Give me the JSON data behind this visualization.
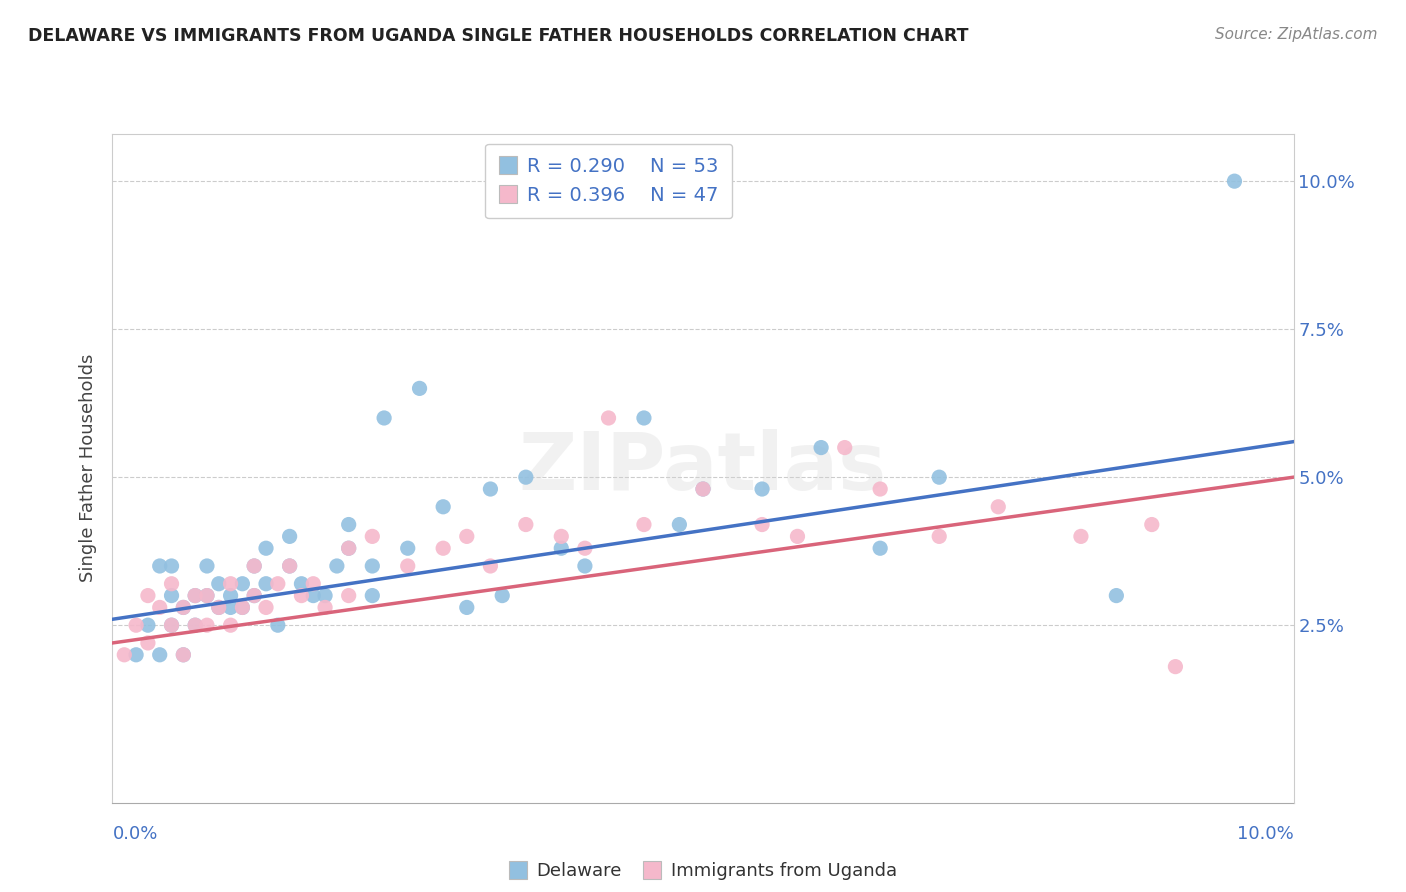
{
  "title": "DELAWARE VS IMMIGRANTS FROM UGANDA SINGLE FATHER HOUSEHOLDS CORRELATION CHART",
  "source": "Source: ZipAtlas.com",
  "ylabel": "Single Father Households",
  "ylabel_right_ticks": [
    "2.5%",
    "5.0%",
    "7.5%",
    "10.0%"
  ],
  "ylabel_right_values": [
    0.025,
    0.05,
    0.075,
    0.1
  ],
  "xlim": [
    0.0,
    0.1
  ],
  "ylim": [
    -0.005,
    0.108
  ],
  "legend1_R": "0.290",
  "legend1_N": "53",
  "legend2_R": "0.396",
  "legend2_N": "47",
  "blue_color": "#92C0E0",
  "pink_color": "#F5B8CB",
  "blue_line_color": "#4472C4",
  "pink_line_color": "#D9647A",
  "text_color": "#4472C4",
  "watermark": "ZIPatlas",
  "blue_points_x": [
    0.002,
    0.003,
    0.004,
    0.004,
    0.005,
    0.005,
    0.005,
    0.006,
    0.006,
    0.007,
    0.007,
    0.008,
    0.008,
    0.009,
    0.009,
    0.01,
    0.01,
    0.011,
    0.011,
    0.012,
    0.012,
    0.013,
    0.013,
    0.014,
    0.015,
    0.015,
    0.016,
    0.017,
    0.018,
    0.019,
    0.02,
    0.02,
    0.022,
    0.022,
    0.023,
    0.025,
    0.026,
    0.028,
    0.03,
    0.032,
    0.033,
    0.035,
    0.038,
    0.04,
    0.045,
    0.048,
    0.05,
    0.055,
    0.06,
    0.065,
    0.07,
    0.085,
    0.095
  ],
  "blue_points_y": [
    0.02,
    0.025,
    0.02,
    0.035,
    0.025,
    0.03,
    0.035,
    0.02,
    0.028,
    0.03,
    0.025,
    0.03,
    0.035,
    0.028,
    0.032,
    0.028,
    0.03,
    0.032,
    0.028,
    0.035,
    0.03,
    0.038,
    0.032,
    0.025,
    0.04,
    0.035,
    0.032,
    0.03,
    0.03,
    0.035,
    0.038,
    0.042,
    0.03,
    0.035,
    0.06,
    0.038,
    0.065,
    0.045,
    0.028,
    0.048,
    0.03,
    0.05,
    0.038,
    0.035,
    0.06,
    0.042,
    0.048,
    0.048,
    0.055,
    0.038,
    0.05,
    0.03,
    0.1
  ],
  "pink_points_x": [
    0.001,
    0.002,
    0.003,
    0.003,
    0.004,
    0.005,
    0.005,
    0.006,
    0.006,
    0.007,
    0.007,
    0.008,
    0.008,
    0.009,
    0.01,
    0.01,
    0.011,
    0.012,
    0.012,
    0.013,
    0.014,
    0.015,
    0.016,
    0.017,
    0.018,
    0.02,
    0.02,
    0.022,
    0.025,
    0.028,
    0.03,
    0.032,
    0.035,
    0.038,
    0.04,
    0.042,
    0.045,
    0.05,
    0.055,
    0.058,
    0.062,
    0.065,
    0.07,
    0.075,
    0.082,
    0.088,
    0.09
  ],
  "pink_points_y": [
    0.02,
    0.025,
    0.022,
    0.03,
    0.028,
    0.025,
    0.032,
    0.02,
    0.028,
    0.025,
    0.03,
    0.025,
    0.03,
    0.028,
    0.025,
    0.032,
    0.028,
    0.03,
    0.035,
    0.028,
    0.032,
    0.035,
    0.03,
    0.032,
    0.028,
    0.038,
    0.03,
    0.04,
    0.035,
    0.038,
    0.04,
    0.035,
    0.042,
    0.04,
    0.038,
    0.06,
    0.042,
    0.048,
    0.042,
    0.04,
    0.055,
    0.048,
    0.04,
    0.045,
    0.04,
    0.042,
    0.018
  ],
  "blue_line_x": [
    0.0,
    0.1
  ],
  "blue_line_y": [
    0.026,
    0.056
  ],
  "pink_line_x": [
    0.0,
    0.1
  ],
  "pink_line_y": [
    0.022,
    0.05
  ]
}
